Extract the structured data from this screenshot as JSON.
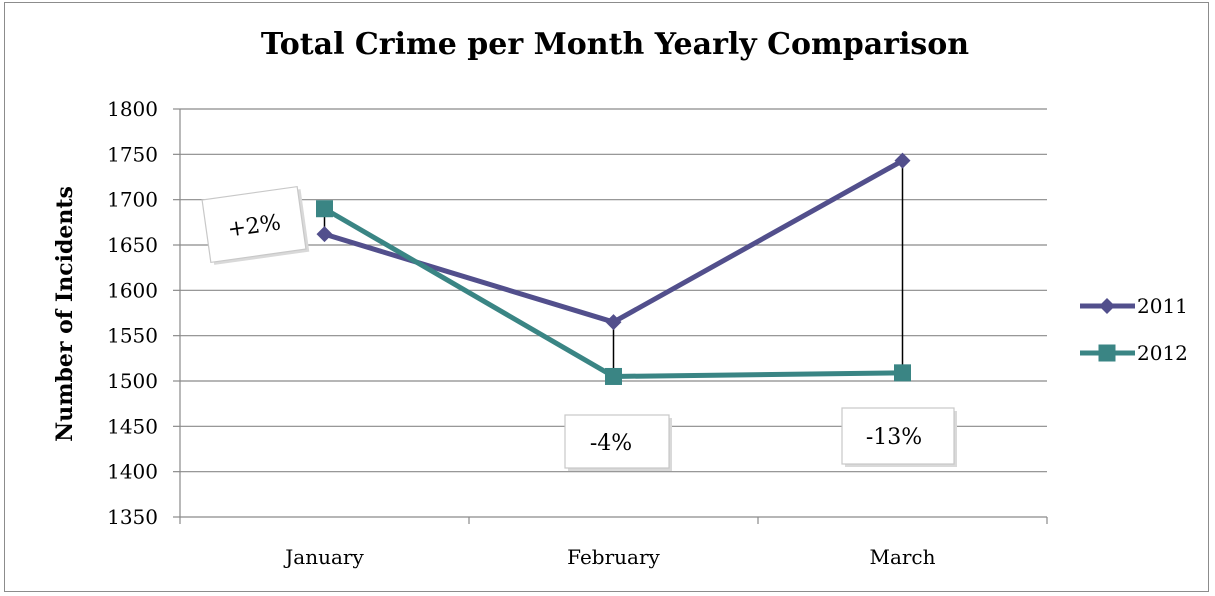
{
  "chart_data": {
    "type": "line",
    "title": "Total Crime per Month Yearly Comparison",
    "xlabel": "",
    "ylabel": "Number of Incidents",
    "categories": [
      "January",
      "February",
      "March"
    ],
    "ylim": [
      1350,
      1800
    ],
    "yticks": [
      1350,
      1400,
      1450,
      1500,
      1550,
      1600,
      1650,
      1700,
      1750,
      1800
    ],
    "grid": true,
    "legend_position": "right",
    "series": [
      {
        "name": "2011",
        "values": [
          1662,
          1565,
          1743
        ],
        "color": "#524f8c",
        "marker": "diamond"
      },
      {
        "name": "2012",
        "values": [
          1690,
          1505,
          1509
        ],
        "color": "#3a8584",
        "marker": "square"
      }
    ],
    "annotations": [
      {
        "text": "+2%",
        "category_index": 0,
        "rotation": -8
      },
      {
        "text": "-4%",
        "category_index": 1,
        "rotation": 0
      },
      {
        "text": "-13%",
        "category_index": 2,
        "rotation": 0
      }
    ]
  }
}
